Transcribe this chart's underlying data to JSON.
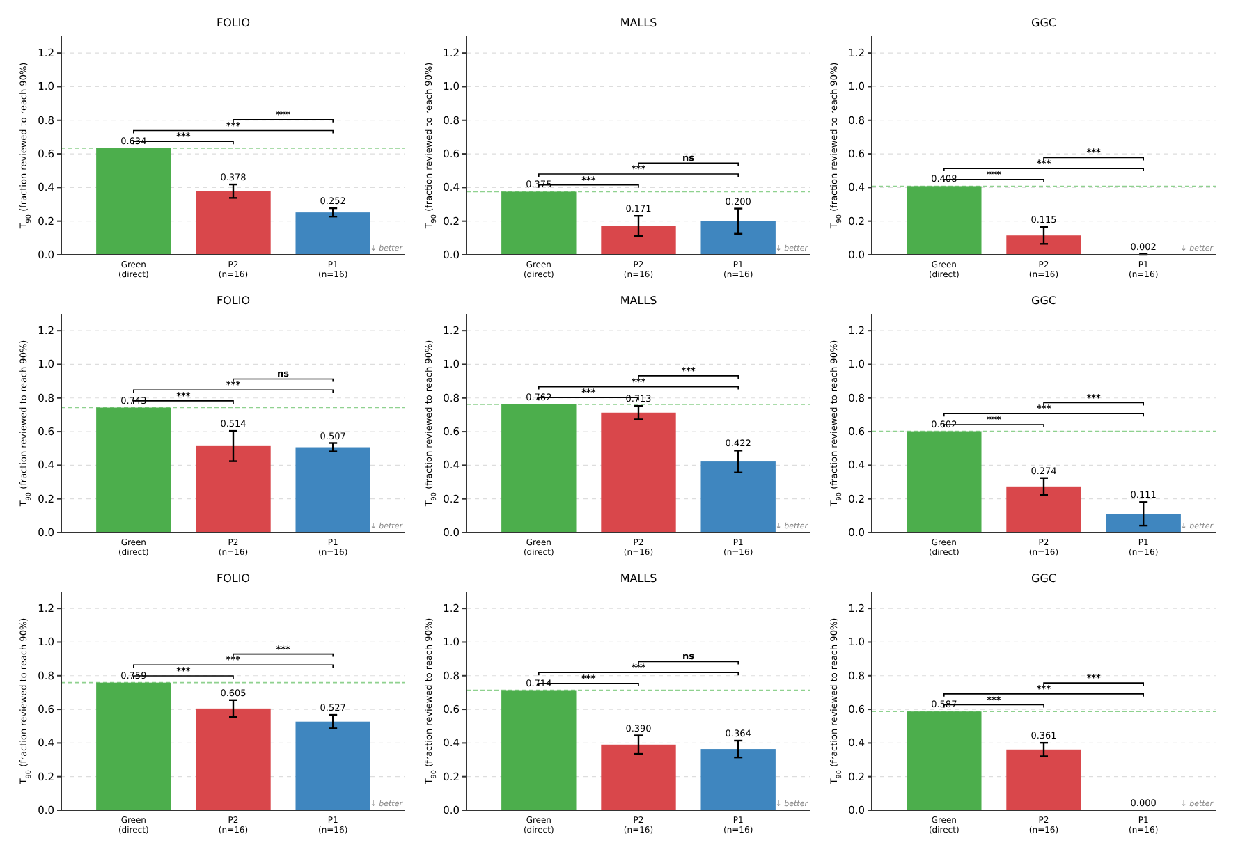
{
  "chart_data": [
    {
      "type": "bar",
      "title": "FOLIO",
      "ylabel": "T$_{90}$ (fraction reviewed to reach 90%)",
      "categories": [
        "Green\n(direct)",
        "P2\n(n=16)",
        "P1\n(n=16)"
      ],
      "values": [
        0.634,
        0.378,
        0.252
      ],
      "errors": [
        null,
        0.04,
        0.025
      ],
      "value_labels": [
        "0.634",
        "0.378",
        "0.252"
      ],
      "colors": [
        "#4cae4c",
        "#d9474b",
        "#3f86bf"
      ],
      "ylim": [
        0,
        1.3
      ],
      "yticks": [
        {
          "value": 0,
          "label": "0.0"
        },
        {
          "value": 0.2,
          "label": "0.2"
        },
        {
          "value": 0.4,
          "label": "0.4"
        },
        {
          "value": 0.6,
          "label": "0.6"
        },
        {
          "value": 0.8,
          "label": "0.8"
        },
        {
          "value": 1,
          "label": "1.0"
        },
        {
          "value": 1.2,
          "label": "1.2"
        }
      ],
      "grid": "y",
      "ref_lines": [
        {
          "axis": "y",
          "value": 0.634,
          "color": "#8fd18f",
          "line_style": "dashed"
        }
      ],
      "annotations": [
        "***",
        "***",
        "***",
        "↓ better"
      ]
    },
    {
      "type": "bar",
      "title": "MALLS",
      "ylabel": "T$_{90}$ (fraction reviewed to reach 90%)",
      "categories": [
        "Green\n(direct)",
        "P2\n(n=16)",
        "P1\n(n=16)"
      ],
      "values": [
        0.375,
        0.171,
        0.2
      ],
      "errors": [
        null,
        0.06,
        0.075
      ],
      "value_labels": [
        "0.375",
        "0.171",
        "0.200"
      ],
      "colors": [
        "#4cae4c",
        "#d9474b",
        "#3f86bf"
      ],
      "ylim": [
        0,
        1.3
      ],
      "yticks": [
        {
          "value": 0,
          "label": "0.0"
        },
        {
          "value": 0.2,
          "label": "0.2"
        },
        {
          "value": 0.4,
          "label": "0.4"
        },
        {
          "value": 0.6,
          "label": "0.6"
        },
        {
          "value": 0.8,
          "label": "0.8"
        },
        {
          "value": 1,
          "label": "1.0"
        },
        {
          "value": 1.2,
          "label": "1.2"
        }
      ],
      "grid": "y",
      "ref_lines": [
        {
          "axis": "y",
          "value": 0.375,
          "color": "#8fd18f",
          "line_style": "dashed"
        }
      ],
      "annotations": [
        "***",
        "***",
        "ns",
        "↓ better"
      ]
    },
    {
      "type": "bar",
      "title": "GGC",
      "ylabel": "T$_{90}$ (fraction reviewed to reach 90%)",
      "categories": [
        "Green\n(direct)",
        "P2\n(n=16)",
        "P1\n(n=16)"
      ],
      "values": [
        0.408,
        0.115,
        0.002
      ],
      "errors": [
        null,
        0.05,
        0.002
      ],
      "value_labels": [
        "0.408",
        "0.115",
        "0.002"
      ],
      "colors": [
        "#4cae4c",
        "#d9474b",
        "#3f86bf"
      ],
      "ylim": [
        0,
        1.3
      ],
      "yticks": [
        {
          "value": 0,
          "label": "0.0"
        },
        {
          "value": 0.2,
          "label": "0.2"
        },
        {
          "value": 0.4,
          "label": "0.4"
        },
        {
          "value": 0.6,
          "label": "0.6"
        },
        {
          "value": 0.8,
          "label": "0.8"
        },
        {
          "value": 1,
          "label": "1.0"
        },
        {
          "value": 1.2,
          "label": "1.2"
        }
      ],
      "grid": "y",
      "ref_lines": [
        {
          "axis": "y",
          "value": 0.408,
          "color": "#8fd18f",
          "line_style": "dashed"
        }
      ],
      "annotations": [
        "***",
        "***",
        "***",
        "↓ better"
      ]
    },
    {
      "type": "bar",
      "title": "FOLIO",
      "ylabel": "T$_{90}$ (fraction reviewed to reach 90%)",
      "categories": [
        "Green\n(direct)",
        "P2\n(n=16)",
        "P1\n(n=16)"
      ],
      "values": [
        0.743,
        0.514,
        0.507
      ],
      "errors": [
        null,
        0.09,
        0.025
      ],
      "value_labels": [
        "0.743",
        "0.514",
        "0.507"
      ],
      "colors": [
        "#4cae4c",
        "#d9474b",
        "#3f86bf"
      ],
      "ylim": [
        0,
        1.3
      ],
      "yticks": [
        {
          "value": 0,
          "label": "0.0"
        },
        {
          "value": 0.2,
          "label": "0.2"
        },
        {
          "value": 0.4,
          "label": "0.4"
        },
        {
          "value": 0.6,
          "label": "0.6"
        },
        {
          "value": 0.8,
          "label": "0.8"
        },
        {
          "value": 1,
          "label": "1.0"
        },
        {
          "value": 1.2,
          "label": "1.2"
        }
      ],
      "grid": "y",
      "ref_lines": [
        {
          "axis": "y",
          "value": 0.743,
          "color": "#8fd18f",
          "line_style": "dashed"
        }
      ],
      "annotations": [
        "***",
        "***",
        "ns",
        "↓ better"
      ]
    },
    {
      "type": "bar",
      "title": "MALLS",
      "ylabel": "T$_{90}$ (fraction reviewed to reach 90%)",
      "categories": [
        "Green\n(direct)",
        "P2\n(n=16)",
        "P1\n(n=16)"
      ],
      "values": [
        0.762,
        0.713,
        0.422
      ],
      "errors": [
        null,
        0.04,
        0.065
      ],
      "value_labels": [
        "0.762",
        "0.713",
        "0.422"
      ],
      "colors": [
        "#4cae4c",
        "#d9474b",
        "#3f86bf"
      ],
      "ylim": [
        0,
        1.3
      ],
      "yticks": [
        {
          "value": 0,
          "label": "0.0"
        },
        {
          "value": 0.2,
          "label": "0.2"
        },
        {
          "value": 0.4,
          "label": "0.4"
        },
        {
          "value": 0.6,
          "label": "0.6"
        },
        {
          "value": 0.8,
          "label": "0.8"
        },
        {
          "value": 1,
          "label": "1.0"
        },
        {
          "value": 1.2,
          "label": "1.2"
        }
      ],
      "grid": "y",
      "ref_lines": [
        {
          "axis": "y",
          "value": 0.762,
          "color": "#8fd18f",
          "line_style": "dashed"
        }
      ],
      "annotations": [
        "***",
        "***",
        "***",
        "↓ better"
      ]
    },
    {
      "type": "bar",
      "title": "GGC",
      "ylabel": "T$_{90}$ (fraction reviewed to reach 90%)",
      "categories": [
        "Green\n(direct)",
        "P2\n(n=16)",
        "P1\n(n=16)"
      ],
      "values": [
        0.602,
        0.274,
        0.111
      ],
      "errors": [
        null,
        0.05,
        0.07
      ],
      "value_labels": [
        "0.602",
        "0.274",
        "0.111"
      ],
      "colors": [
        "#4cae4c",
        "#d9474b",
        "#3f86bf"
      ],
      "ylim": [
        0,
        1.3
      ],
      "yticks": [
        {
          "value": 0,
          "label": "0.0"
        },
        {
          "value": 0.2,
          "label": "0.2"
        },
        {
          "value": 0.4,
          "label": "0.4"
        },
        {
          "value": 0.6,
          "label": "0.6"
        },
        {
          "value": 0.8,
          "label": "0.8"
        },
        {
          "value": 1,
          "label": "1.0"
        },
        {
          "value": 1.2,
          "label": "1.2"
        }
      ],
      "grid": "y",
      "ref_lines": [
        {
          "axis": "y",
          "value": 0.602,
          "color": "#8fd18f",
          "line_style": "dashed"
        }
      ],
      "annotations": [
        "***",
        "***",
        "***",
        "↓ better"
      ]
    },
    {
      "type": "bar",
      "title": "FOLIO",
      "ylabel": "T$_{90}$ (fraction reviewed to reach 90%)",
      "categories": [
        "Green\n(direct)",
        "P2\n(n=16)",
        "P1\n(n=16)"
      ],
      "values": [
        0.759,
        0.605,
        0.527
      ],
      "errors": [
        null,
        0.05,
        0.04
      ],
      "value_labels": [
        "0.759",
        "0.605",
        "0.527"
      ],
      "colors": [
        "#4cae4c",
        "#d9474b",
        "#3f86bf"
      ],
      "ylim": [
        0,
        1.3
      ],
      "yticks": [
        {
          "value": 0,
          "label": "0.0"
        },
        {
          "value": 0.2,
          "label": "0.2"
        },
        {
          "value": 0.4,
          "label": "0.4"
        },
        {
          "value": 0.6,
          "label": "0.6"
        },
        {
          "value": 0.8,
          "label": "0.8"
        },
        {
          "value": 1,
          "label": "1.0"
        },
        {
          "value": 1.2,
          "label": "1.2"
        }
      ],
      "grid": "y",
      "ref_lines": [
        {
          "axis": "y",
          "value": 0.759,
          "color": "#8fd18f",
          "line_style": "dashed"
        }
      ],
      "annotations": [
        "***",
        "***",
        "***",
        "↓ better"
      ]
    },
    {
      "type": "bar",
      "title": "MALLS",
      "ylabel": "T$_{90}$ (fraction reviewed to reach 90%)",
      "categories": [
        "Green\n(direct)",
        "P2\n(n=16)",
        "P1\n(n=16)"
      ],
      "values": [
        0.714,
        0.39,
        0.364
      ],
      "errors": [
        null,
        0.055,
        0.05
      ],
      "value_labels": [
        "0.714",
        "0.390",
        "0.364"
      ],
      "colors": [
        "#4cae4c",
        "#d9474b",
        "#3f86bf"
      ],
      "ylim": [
        0,
        1.3
      ],
      "yticks": [
        {
          "value": 0,
          "label": "0.0"
        },
        {
          "value": 0.2,
          "label": "0.2"
        },
        {
          "value": 0.4,
          "label": "0.4"
        },
        {
          "value": 0.6,
          "label": "0.6"
        },
        {
          "value": 0.8,
          "label": "0.8"
        },
        {
          "value": 1,
          "label": "1.0"
        },
        {
          "value": 1.2,
          "label": "1.2"
        }
      ],
      "grid": "y",
      "ref_lines": [
        {
          "axis": "y",
          "value": 0.714,
          "color": "#8fd18f",
          "line_style": "dashed"
        }
      ],
      "annotations": [
        "***",
        "***",
        "ns",
        "↓ better"
      ]
    },
    {
      "type": "bar",
      "title": "GGC",
      "ylabel": "T$_{90}$ (fraction reviewed to reach 90%)",
      "categories": [
        "Green\n(direct)",
        "P2\n(n=16)",
        "P1\n(n=16)"
      ],
      "values": [
        0.587,
        0.361,
        0
      ],
      "errors": [
        null,
        0.04,
        null
      ],
      "value_labels": [
        "0.587",
        "0.361",
        "0.000"
      ],
      "colors": [
        "#4cae4c",
        "#d9474b",
        "#3f86bf"
      ],
      "ylim": [
        0,
        1.3
      ],
      "yticks": [
        {
          "value": 0,
          "label": "0.0"
        },
        {
          "value": 0.2,
          "label": "0.2"
        },
        {
          "value": 0.4,
          "label": "0.4"
        },
        {
          "value": 0.6,
          "label": "0.6"
        },
        {
          "value": 0.8,
          "label": "0.8"
        },
        {
          "value": 1,
          "label": "1.0"
        },
        {
          "value": 1.2,
          "label": "1.2"
        }
      ],
      "grid": "y",
      "ref_lines": [
        {
          "axis": "y",
          "value": 0.587,
          "color": "#8fd18f",
          "line_style": "dashed"
        }
      ],
      "annotations": [
        "***",
        "***",
        "***",
        "↓ better"
      ]
    }
  ]
}
